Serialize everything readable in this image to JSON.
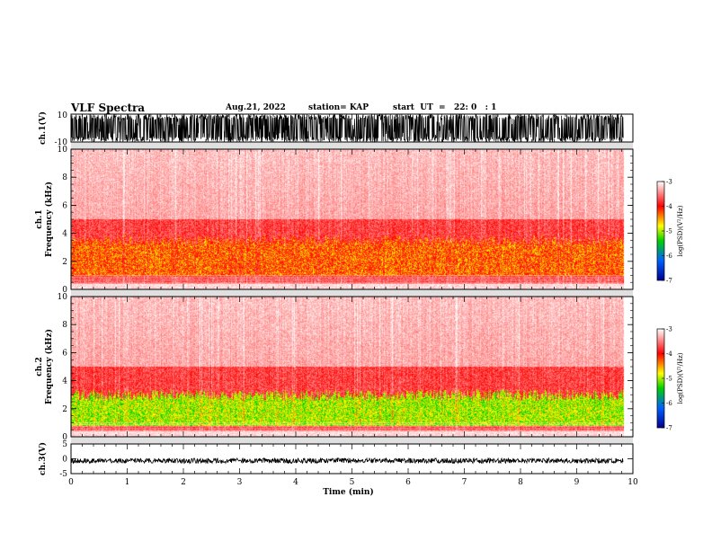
{
  "header": {
    "title": "VLF Spectra",
    "date": "Aug.21, 2022",
    "station": "station= KAP",
    "start": "start  UT  =   22: 0   : 1"
  },
  "chart_data": [
    {
      "type": "line",
      "name": "waveform-ch1",
      "ylabel": "ch.1(V)",
      "ylim": [
        -10,
        10
      ],
      "y_ticks": [
        "10",
        "-10"
      ],
      "xlim": [
        0,
        10
      ],
      "signal_end_min": 9.83,
      "amplitude_range_v": [
        -10,
        10
      ]
    },
    {
      "type": "heatmap",
      "name": "spectrogram-ch1",
      "ylabel_line1": "ch.1",
      "ylabel_line2": "Frequency (kHz)",
      "ylim": [
        0,
        10
      ],
      "y_ticks": [
        "0",
        "2",
        "4",
        "6",
        "8",
        "10"
      ],
      "xlim": [
        0,
        10
      ],
      "data_end_min": 9.83,
      "colorbar": {
        "label": "log(PSD)(V²/Hz)",
        "range": [
          -7,
          -3
        ],
        "ticks": [
          "-3",
          "-4",
          "-5",
          "-6",
          "-7"
        ],
        "colors": [
          "#000090",
          "#0060ff",
          "#00d000",
          "#ffff00",
          "#ff0000",
          "#ffffff"
        ]
      },
      "strong_band_khz": [
        1,
        3.5
      ],
      "moderate_band_khz": [
        0.5,
        5
      ],
      "strong_level": "-4.3"
    },
    {
      "type": "heatmap",
      "name": "spectrogram-ch2",
      "ylabel_line1": "ch.2",
      "ylabel_line2": "Frequency (kHz)",
      "ylim": [
        0,
        10
      ],
      "y_ticks": [
        "0",
        "2",
        "4",
        "6",
        "8",
        "10"
      ],
      "xlim": [
        0,
        10
      ],
      "data_end_min": 9.83,
      "colorbar": {
        "label": "log(PSD)(V²/Hz)",
        "range": [
          -7,
          -3
        ],
        "ticks": [
          "-3",
          "-4",
          "-5",
          "-6",
          "-7"
        ],
        "colors": [
          "#000090",
          "#0060ff",
          "#00d000",
          "#ffff00",
          "#ff0000",
          "#ffffff"
        ]
      },
      "strong_band_khz": [
        0.8,
        3
      ],
      "moderate_band_khz": [
        0.5,
        5
      ],
      "strong_level": "-5"
    },
    {
      "type": "line",
      "name": "waveform-ch3",
      "ylabel": "ch.3(V)",
      "ylim": [
        -5,
        5
      ],
      "y_ticks": [
        "5",
        "0",
        "-5"
      ],
      "xlim": [
        0,
        10
      ],
      "signal_end_min": 9.83,
      "amplitude_range_v": [
        -1.5,
        0.2
      ]
    }
  ],
  "xaxis": {
    "label": "Time (min)",
    "range": [
      0,
      10
    ],
    "ticks": [
      "0",
      "1",
      "2",
      "3",
      "4",
      "5",
      "6",
      "7",
      "8",
      "9",
      "10"
    ]
  }
}
